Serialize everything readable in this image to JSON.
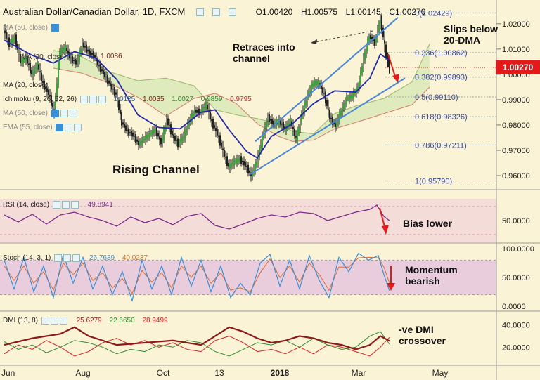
{
  "header": {
    "symbol": "Australian Dollar/Canadian Dollar, 1D, FXCM",
    "open": "O1.00420",
    "high": "H1.00575",
    "low": "L1.00145",
    "close": "C1.00270"
  },
  "last_price": "1.00270",
  "overlays": {
    "sma20": "MA (20, close)",
    "ichimoku": "Ichimoku (9, 26, 52, 26)",
    "ichimoku_values": [
      "1.0125",
      "1.0035",
      "1.0027",
      "0.9859",
      "0.9795"
    ],
    "ma50": "MA (50, close)",
    "ema55": "EMA (55, close)",
    "level_label": "1.0086"
  },
  "annotations": {
    "retrace": "Retraces into\nchannel",
    "slips": "Slips below\n20-DMA",
    "channel": "Rising Channel",
    "rsi_note": "Bias lower",
    "stoch_note": "Momentum\nbearish",
    "dmi_note": "-ve DMI\ncrossover"
  },
  "colors": {
    "background": "#fbf3d6",
    "price_badge": "#e31a1a",
    "channel_lines": "#4a86d8",
    "sma20": "#1f2aa8",
    "candle": "#1a1a1a",
    "rsi_line": "#7b2d8e",
    "stoch_k": "#3a8fd6",
    "stoch_d": "#e06a2a",
    "adx": "#8b1a1a",
    "di_plus": "#2e8b2e",
    "di_minus": "#d92020"
  },
  "chart_data": {
    "type": "candlestick",
    "x_tick_labels": [
      "Jun",
      "Aug",
      "Oct",
      "13",
      "2018",
      "Mar",
      "May"
    ],
    "y_ticks": [
      "1.02000",
      "1.01000",
      "1.00000",
      "0.99000",
      "0.98000",
      "0.97000",
      "0.96000"
    ],
    "ylim": [
      0.955,
      1.028
    ],
    "fib_levels": [
      {
        "label": "0(1.02429)",
        "value": 1.02429
      },
      {
        "label": "0.236(1.00862)",
        "value": 1.00862
      },
      {
        "label": "0.382(0.99893)",
        "value": 0.99893
      },
      {
        "label": "0.5(0.99110)",
        "value": 0.9911
      },
      {
        "label": "0.618(0.98326)",
        "value": 0.98326
      },
      {
        "label": "0.786(0.97211)",
        "value": 0.97211
      },
      {
        "label": "1(0.95790)",
        "value": 0.9579
      }
    ],
    "price_path": [
      [
        0,
        1.0175
      ],
      [
        8,
        1.012
      ],
      [
        16,
        1.0145
      ],
      [
        24,
        1.005
      ],
      [
        32,
        1.0065
      ],
      [
        40,
        1.0
      ],
      [
        48,
        1.004
      ],
      [
        56,
        0.996
      ],
      [
        64,
        0.9925
      ],
      [
        72,
        0.985
      ],
      [
        80,
        1.009
      ],
      [
        88,
        1.0105
      ],
      [
        96,
        1.006
      ],
      [
        104,
        1.0045
      ],
      [
        112,
        1.012
      ],
      [
        120,
        1.009
      ],
      [
        128,
        1.0075
      ],
      [
        136,
        1.003
      ],
      [
        144,
        0.9995
      ],
      [
        152,
        0.9955
      ],
      [
        160,
        0.992
      ],
      [
        168,
        0.981
      ],
      [
        176,
        0.9775
      ],
      [
        184,
        0.976
      ],
      [
        192,
        0.9725
      ],
      [
        200,
        0.9745
      ],
      [
        208,
        0.9765
      ],
      [
        216,
        0.978
      ],
      [
        224,
        0.973
      ],
      [
        232,
        0.982
      ],
      [
        240,
        0.976
      ],
      [
        248,
        0.9725
      ],
      [
        256,
        0.9755
      ],
      [
        264,
        0.9815
      ],
      [
        272,
        0.9855
      ],
      [
        280,
        0.985
      ],
      [
        288,
        0.988
      ],
      [
        296,
        0.981
      ],
      [
        304,
        0.9765
      ],
      [
        312,
        0.9695
      ],
      [
        320,
        0.9635
      ],
      [
        328,
        0.9655
      ],
      [
        336,
        0.9665
      ],
      [
        344,
        0.964
      ],
      [
        352,
        0.96
      ],
      [
        360,
        0.9655
      ],
      [
        368,
        0.975
      ],
      [
        376,
        0.983
      ],
      [
        384,
        0.9805
      ],
      [
        392,
        0.9815
      ],
      [
        400,
        0.9785
      ],
      [
        408,
        0.9815
      ],
      [
        416,
        0.9745
      ],
      [
        424,
        0.984
      ],
      [
        432,
        0.9915
      ],
      [
        440,
        0.9965
      ],
      [
        448,
        0.9965
      ],
      [
        456,
        0.992
      ],
      [
        464,
        0.983
      ],
      [
        472,
        0.9795
      ],
      [
        480,
        0.9855
      ],
      [
        488,
        0.9905
      ],
      [
        496,
        0.9915
      ],
      [
        504,
        0.995
      ],
      [
        512,
        1.006
      ],
      [
        520,
        1.015
      ],
      [
        528,
        1.0125
      ],
      [
        536,
        1.022
      ],
      [
        544,
        1.0075
      ],
      [
        548,
        1.0027
      ]
    ],
    "sma20_path": [
      [
        0,
        1.0135
      ],
      [
        40,
        1.0075
      ],
      [
        70,
        1.0045
      ],
      [
        100,
        1.009
      ],
      [
        130,
        1.0065
      ],
      [
        160,
        0.998
      ],
      [
        190,
        0.984
      ],
      [
        220,
        0.979
      ],
      [
        250,
        0.9785
      ],
      [
        280,
        0.985
      ],
      [
        300,
        0.986
      ],
      [
        320,
        0.978
      ],
      [
        345,
        0.9695
      ],
      [
        360,
        0.967
      ],
      [
        380,
        0.9755
      ],
      [
        410,
        0.9805
      ],
      [
        440,
        0.9885
      ],
      [
        470,
        0.9935
      ],
      [
        500,
        0.993
      ],
      [
        520,
        0.9985
      ],
      [
        535,
        1.008
      ],
      [
        548,
        1.0055
      ]
    ],
    "channel": {
      "lower": [
        [
          350,
          0.9605
        ],
        [
          570,
          0.9985
        ]
      ],
      "upper": [
        [
          357,
          0.9735
        ],
        [
          560,
          1.0225
        ]
      ]
    },
    "kumo_upper": [
      [
        70,
        1.0095
      ],
      [
        110,
        1.007
      ],
      [
        150,
        1.001
      ],
      [
        190,
        0.9975
      ],
      [
        230,
        0.9985
      ],
      [
        270,
        0.9955
      ],
      [
        300,
        0.986
      ],
      [
        330,
        0.984
      ],
      [
        360,
        0.9825
      ],
      [
        390,
        0.9805
      ],
      [
        410,
        0.9775
      ],
      [
        440,
        0.9765
      ],
      [
        470,
        0.9845
      ],
      [
        500,
        0.9875
      ],
      [
        540,
        0.9905
      ],
      [
        580,
        0.997
      ],
      [
        605,
        1.012
      ]
    ],
    "kumo_lower": [
      [
        70,
        1.0025
      ],
      [
        110,
        1.0005
      ],
      [
        150,
        0.9965
      ],
      [
        190,
        0.991
      ],
      [
        230,
        0.9835
      ],
      [
        270,
        0.9905
      ],
      [
        300,
        0.9925
      ],
      [
        330,
        0.9885
      ],
      [
        360,
        0.9805
      ],
      [
        390,
        0.9755
      ],
      [
        410,
        0.9735
      ],
      [
        440,
        0.974
      ],
      [
        470,
        0.9785
      ],
      [
        500,
        0.981
      ],
      [
        540,
        0.9845
      ],
      [
        580,
        0.988
      ],
      [
        605,
        0.995
      ]
    ],
    "rsi": {
      "label": "RSI (14, close)",
      "value": "49.8941",
      "y_ticks": [
        "50.0000"
      ],
      "ylim": [
        20,
        80
      ],
      "path": [
        [
          0,
          58
        ],
        [
          20,
          48
        ],
        [
          40,
          59
        ],
        [
          60,
          45
        ],
        [
          80,
          58
        ],
        [
          100,
          62
        ],
        [
          120,
          55
        ],
        [
          140,
          50
        ],
        [
          160,
          42
        ],
        [
          180,
          55
        ],
        [
          200,
          47
        ],
        [
          220,
          53
        ],
        [
          240,
          44
        ],
        [
          260,
          56
        ],
        [
          280,
          60
        ],
        [
          300,
          43
        ],
        [
          320,
          38
        ],
        [
          340,
          45
        ],
        [
          360,
          53
        ],
        [
          380,
          58
        ],
        [
          400,
          55
        ],
        [
          420,
          62
        ],
        [
          440,
          60
        ],
        [
          460,
          50
        ],
        [
          480,
          56
        ],
        [
          500,
          62
        ],
        [
          520,
          66
        ],
        [
          530,
          72
        ],
        [
          540,
          56
        ],
        [
          548,
          49.9
        ]
      ]
    },
    "stochastic": {
      "label": "Stoch (14, 3, 1)",
      "k_value": "26.7639",
      "d_value": "40.0237",
      "y_ticks": [
        "100.0000",
        "50.0000",
        "0.0000"
      ],
      "ylim": [
        0,
        100
      ],
      "band": [
        20,
        80
      ],
      "k_path": [
        [
          0,
          80
        ],
        [
          14,
          30
        ],
        [
          28,
          85
        ],
        [
          42,
          25
        ],
        [
          56,
          70
        ],
        [
          70,
          15
        ],
        [
          84,
          90
        ],
        [
          98,
          40
        ],
        [
          112,
          85
        ],
        [
          126,
          30
        ],
        [
          140,
          70
        ],
        [
          154,
          20
        ],
        [
          168,
          60
        ],
        [
          182,
          10
        ],
        [
          196,
          80
        ],
        [
          210,
          30
        ],
        [
          224,
          70
        ],
        [
          238,
          20
        ],
        [
          252,
          85
        ],
        [
          266,
          35
        ],
        [
          280,
          80
        ],
        [
          294,
          25
        ],
        [
          308,
          70
        ],
        [
          322,
          15
        ],
        [
          336,
          40
        ],
        [
          350,
          20
        ],
        [
          364,
          75
        ],
        [
          378,
          90
        ],
        [
          392,
          35
        ],
        [
          406,
          80
        ],
        [
          420,
          30
        ],
        [
          434,
          88
        ],
        [
          448,
          45
        ],
        [
          462,
          15
        ],
        [
          476,
          85
        ],
        [
          490,
          60
        ],
        [
          504,
          92
        ],
        [
          518,
          80
        ],
        [
          532,
          88
        ],
        [
          540,
          55
        ],
        [
          548,
          26.8
        ]
      ],
      "d_path": [
        [
          0,
          70
        ],
        [
          14,
          45
        ],
        [
          28,
          70
        ],
        [
          42,
          40
        ],
        [
          56,
          60
        ],
        [
          70,
          28
        ],
        [
          84,
          75
        ],
        [
          98,
          55
        ],
        [
          112,
          75
        ],
        [
          126,
          45
        ],
        [
          140,
          58
        ],
        [
          154,
          32
        ],
        [
          168,
          48
        ],
        [
          182,
          22
        ],
        [
          196,
          62
        ],
        [
          210,
          42
        ],
        [
          224,
          58
        ],
        [
          238,
          32
        ],
        [
          252,
          70
        ],
        [
          266,
          50
        ],
        [
          280,
          70
        ],
        [
          294,
          40
        ],
        [
          308,
          58
        ],
        [
          322,
          28
        ],
        [
          336,
          32
        ],
        [
          350,
          25
        ],
        [
          364,
          58
        ],
        [
          378,
          82
        ],
        [
          392,
          50
        ],
        [
          406,
          70
        ],
        [
          420,
          42
        ],
        [
          434,
          75
        ],
        [
          448,
          55
        ],
        [
          462,
          28
        ],
        [
          476,
          68
        ],
        [
          490,
          68
        ],
        [
          504,
          84
        ],
        [
          518,
          85
        ],
        [
          532,
          84
        ],
        [
          540,
          68
        ],
        [
          548,
          40.0
        ]
      ]
    },
    "dmi": {
      "label": "DMI (13, 8)",
      "adx_value": "25.6279",
      "di_plus_value": "22.6650",
      "di_minus_value": "28.9499",
      "y_ticks": [
        "40.0000",
        "20.0000"
      ],
      "ylim": [
        5,
        48
      ],
      "adx_path": [
        [
          0,
          22
        ],
        [
          40,
          28
        ],
        [
          80,
          32
        ],
        [
          100,
          38
        ],
        [
          120,
          30
        ],
        [
          160,
          22
        ],
        [
          200,
          24
        ],
        [
          240,
          26
        ],
        [
          280,
          22
        ],
        [
          300,
          30
        ],
        [
          320,
          38
        ],
        [
          340,
          34
        ],
        [
          360,
          28
        ],
        [
          380,
          24
        ],
        [
          400,
          26
        ],
        [
          420,
          30
        ],
        [
          440,
          28
        ],
        [
          460,
          24
        ],
        [
          480,
          22
        ],
        [
          500,
          18
        ],
        [
          520,
          22
        ],
        [
          535,
          30
        ],
        [
          548,
          25.6
        ]
      ],
      "di_plus_path": [
        [
          0,
          25
        ],
        [
          20,
          18
        ],
        [
          40,
          22
        ],
        [
          60,
          15
        ],
        [
          80,
          20
        ],
        [
          100,
          26
        ],
        [
          120,
          24
        ],
        [
          140,
          20
        ],
        [
          160,
          14
        ],
        [
          180,
          18
        ],
        [
          200,
          16
        ],
        [
          220,
          22
        ],
        [
          240,
          20
        ],
        [
          260,
          26
        ],
        [
          280,
          24
        ],
        [
          300,
          16
        ],
        [
          320,
          12
        ],
        [
          340,
          18
        ],
        [
          360,
          24
        ],
        [
          380,
          22
        ],
        [
          400,
          26
        ],
        [
          420,
          20
        ],
        [
          440,
          28
        ],
        [
          460,
          22
        ],
        [
          480,
          18
        ],
        [
          500,
          20
        ],
        [
          520,
          30
        ],
        [
          535,
          34
        ],
        [
          548,
          22.7
        ]
      ],
      "di_minus_path": [
        [
          0,
          14
        ],
        [
          20,
          22
        ],
        [
          40,
          18
        ],
        [
          60,
          26
        ],
        [
          80,
          20
        ],
        [
          100,
          12
        ],
        [
          120,
          16
        ],
        [
          140,
          24
        ],
        [
          160,
          28
        ],
        [
          180,
          22
        ],
        [
          200,
          26
        ],
        [
          220,
          20
        ],
        [
          240,
          24
        ],
        [
          260,
          18
        ],
        [
          280,
          16
        ],
        [
          300,
          26
        ],
        [
          320,
          30
        ],
        [
          340,
          24
        ],
        [
          360,
          16
        ],
        [
          380,
          18
        ],
        [
          400,
          14
        ],
        [
          420,
          20
        ],
        [
          440,
          14
        ],
        [
          460,
          22
        ],
        [
          480,
          20
        ],
        [
          500,
          16
        ],
        [
          520,
          12
        ],
        [
          535,
          20
        ],
        [
          548,
          28.9
        ]
      ]
    }
  }
}
